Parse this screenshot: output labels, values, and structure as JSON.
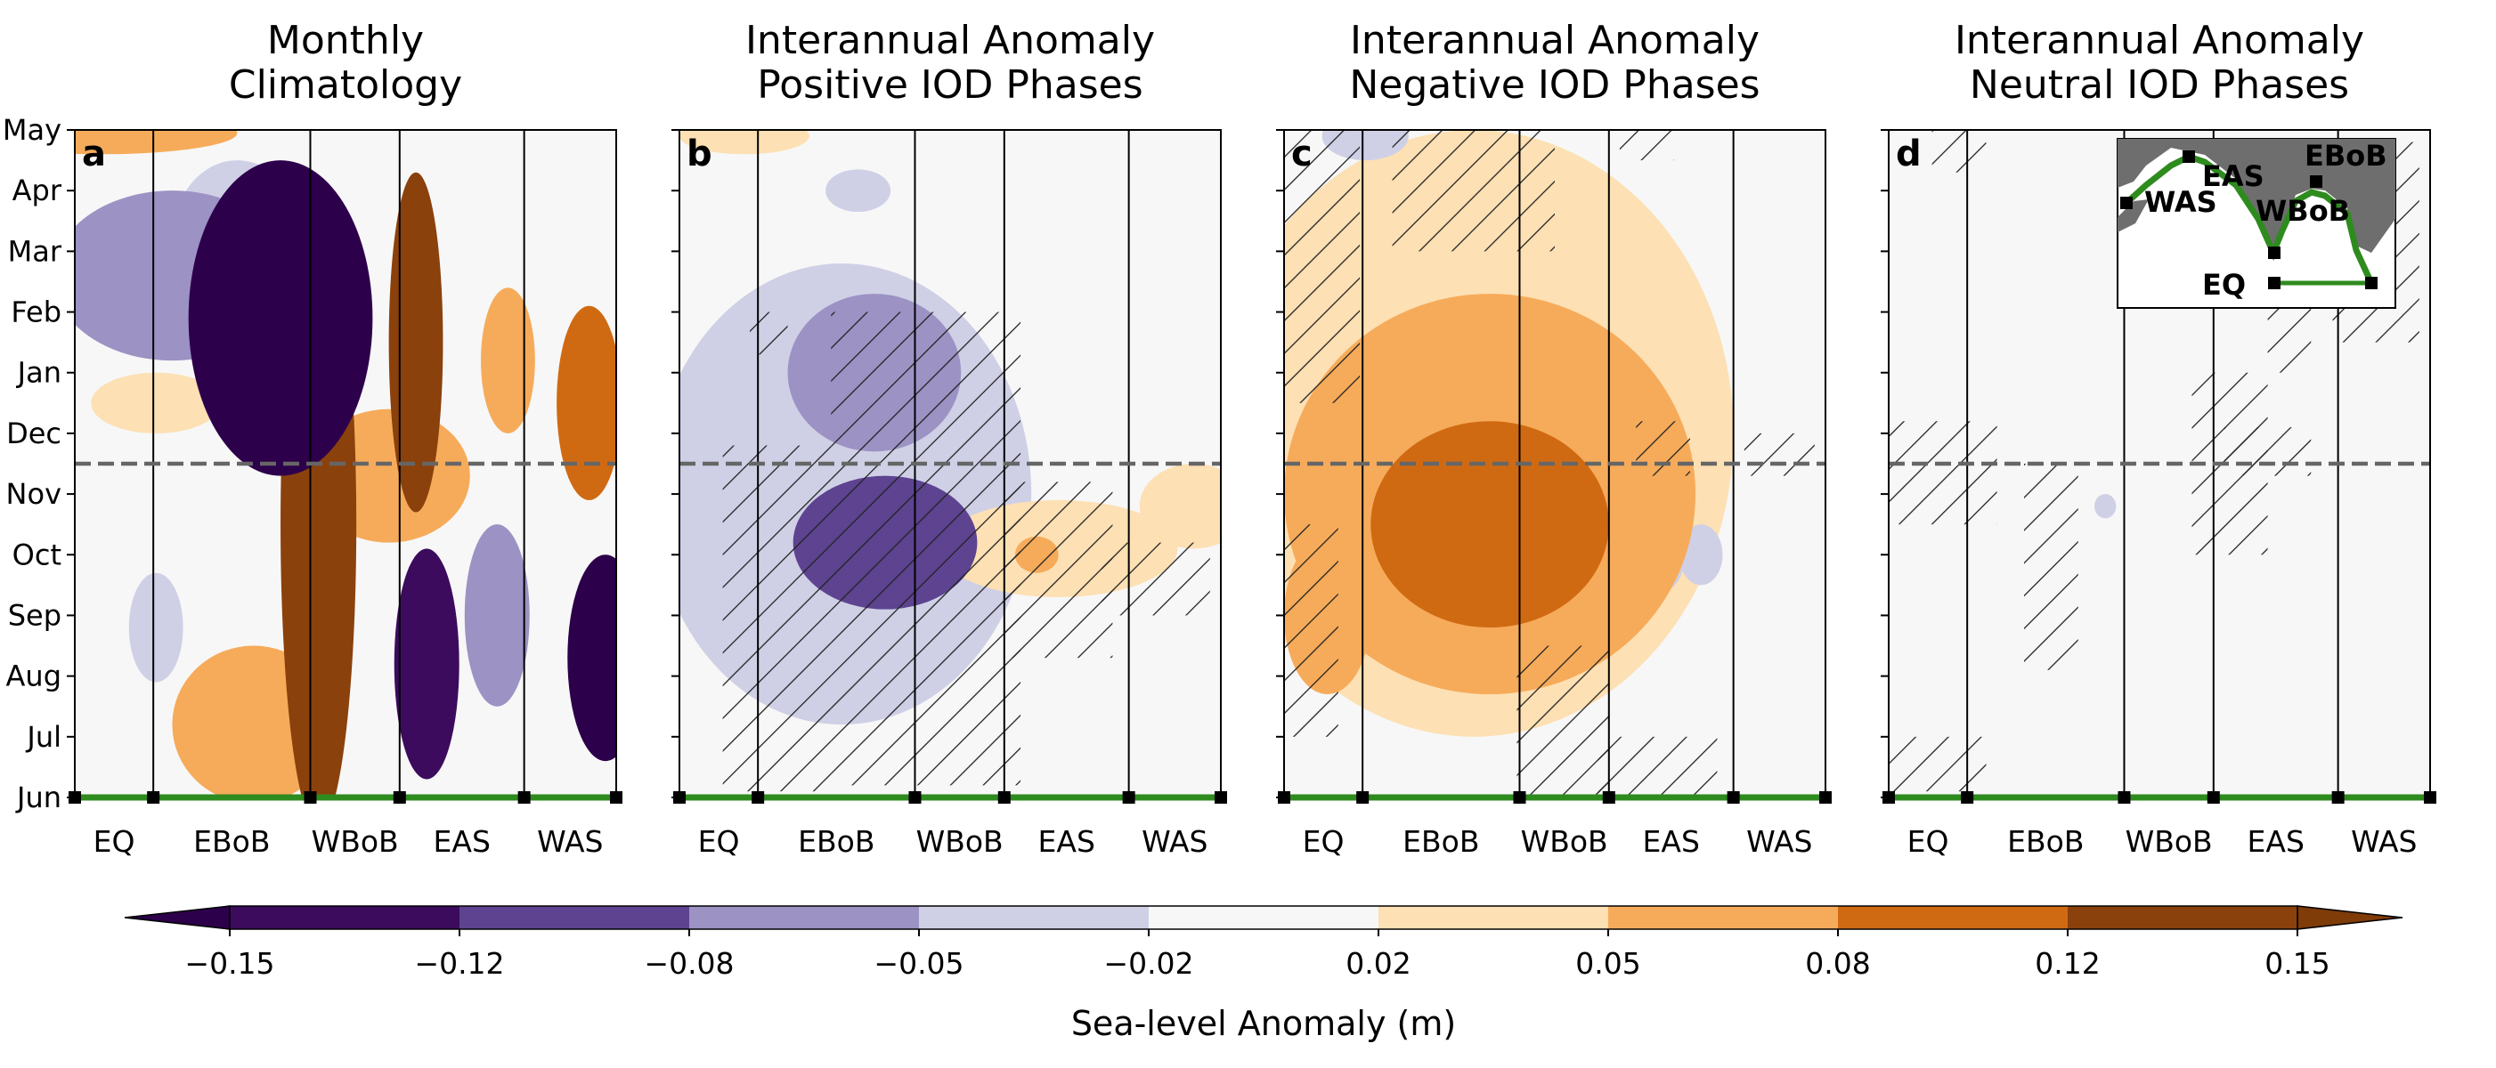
{
  "chart_data": {
    "type": "heatmap",
    "y_ticks": [
      "Jun",
      "Jul",
      "Aug",
      "Sep",
      "Oct",
      "Nov",
      "Dec",
      "Jan",
      "Feb",
      "Mar",
      "Apr",
      "May"
    ],
    "x_regions": [
      "EQ",
      "EBoB",
      "WBoB",
      "EAS",
      "WAS"
    ],
    "region_boundaries": [
      0,
      0.145,
      0.435,
      0.6,
      0.83,
      1.0
    ],
    "reference_line_month": 5.5,
    "panels": [
      {
        "label": "a",
        "title_lines": [
          "Monthly",
          "Climatology"
        ],
        "blobs": [
          {
            "cx": 0.38,
            "cy": 7.9,
            "rx": 0.17,
            "ry": 2.6,
            "v": -0.17
          },
          {
            "cx": 0.18,
            "cy": 8.6,
            "rx": 0.22,
            "ry": 1.4,
            "v": -0.08
          },
          {
            "cx": 0.3,
            "cy": 9.2,
            "rx": 0.12,
            "ry": 1.3,
            "v": -0.05
          },
          {
            "cx": 0.45,
            "cy": 4.5,
            "rx": 0.07,
            "ry": 5.0,
            "v": 0.12
          },
          {
            "cx": 0.63,
            "cy": 7.5,
            "rx": 0.05,
            "ry": 2.8,
            "v": 0.14
          },
          {
            "cx": 0.58,
            "cy": 5.3,
            "rx": 0.15,
            "ry": 1.1,
            "v": 0.07
          },
          {
            "cx": 0.33,
            "cy": 1.2,
            "rx": 0.15,
            "ry": 1.3,
            "v": 0.06
          },
          {
            "cx": 0.65,
            "cy": 2.2,
            "rx": 0.06,
            "ry": 1.9,
            "v": -0.15
          },
          {
            "cx": 0.98,
            "cy": 2.3,
            "rx": 0.07,
            "ry": 1.7,
            "v": -0.16
          },
          {
            "cx": 0.78,
            "cy": 3.0,
            "rx": 0.06,
            "ry": 1.5,
            "v": -0.07
          },
          {
            "cx": 0.95,
            "cy": 6.5,
            "rx": 0.06,
            "ry": 1.6,
            "v": 0.09
          },
          {
            "cx": 0.8,
            "cy": 7.2,
            "rx": 0.05,
            "ry": 1.2,
            "v": 0.06
          },
          {
            "cx": 0.15,
            "cy": 2.8,
            "rx": 0.05,
            "ry": 0.9,
            "v": -0.04
          },
          {
            "cx": 0.15,
            "cy": 6.5,
            "rx": 0.12,
            "ry": 0.5,
            "v": 0.03
          },
          {
            "cx": 0.05,
            "cy": 10.95,
            "rx": 0.25,
            "ry": 0.35,
            "v": 0.05
          }
        ],
        "hatch": []
      },
      {
        "label": "b",
        "title_lines": [
          "Interannual Anomaly",
          "Positive IOD Phases"
        ],
        "blobs": [
          {
            "cx": 0.38,
            "cy": 4.2,
            "rx": 0.17,
            "ry": 1.1,
            "v": -0.09
          },
          {
            "cx": 0.3,
            "cy": 5.0,
            "rx": 0.35,
            "ry": 3.8,
            "v": -0.03
          },
          {
            "cx": 0.36,
            "cy": 7.0,
            "rx": 0.16,
            "ry": 1.3,
            "v": -0.055
          },
          {
            "cx": 0.7,
            "cy": 4.1,
            "rx": 0.22,
            "ry": 0.8,
            "v": 0.04
          },
          {
            "cx": 0.66,
            "cy": 4.0,
            "rx": 0.04,
            "ry": 0.3,
            "v": 0.06
          },
          {
            "cx": 0.95,
            "cy": 4.8,
            "rx": 0.1,
            "ry": 0.7,
            "v": 0.03
          },
          {
            "cx": 0.12,
            "cy": 10.9,
            "rx": 0.12,
            "ry": 0.3,
            "v": 0.03
          },
          {
            "cx": 0.33,
            "cy": 10.0,
            "rx": 0.06,
            "ry": 0.35,
            "v": -0.03
          }
        ],
        "hatch": [
          [
            0.08,
            0.28,
            0.1,
            5.8
          ],
          [
            0.28,
            0.63,
            0.2,
            8.0
          ],
          [
            0.6,
            0.8,
            2.3,
            5.2
          ],
          [
            0.13,
            0.2,
            7.3,
            8.0
          ],
          [
            0.78,
            0.98,
            3.0,
            4.2
          ]
        ]
      },
      {
        "label": "c",
        "title_lines": [
          "Interannual Anomaly",
          "Negative IOD Phases"
        ],
        "blobs": [
          {
            "cx": 0.38,
            "cy": 4.5,
            "rx": 0.22,
            "ry": 1.7,
            "v": 0.09
          },
          {
            "cx": 0.38,
            "cy": 5.0,
            "rx": 0.38,
            "ry": 3.3,
            "v": 0.055
          },
          {
            "cx": 0.35,
            "cy": 6.0,
            "rx": 0.48,
            "ry": 5.0,
            "v": 0.03
          },
          {
            "cx": 0.08,
            "cy": 3.0,
            "rx": 0.08,
            "ry": 1.3,
            "v": 0.06
          },
          {
            "cx": 0.7,
            "cy": 4.0,
            "rx": 0.04,
            "ry": 0.6,
            "v": -0.03
          },
          {
            "cx": 0.77,
            "cy": 4.0,
            "rx": 0.04,
            "ry": 0.5,
            "v": -0.03
          },
          {
            "cx": 0.15,
            "cy": 10.9,
            "rx": 0.08,
            "ry": 0.4,
            "v": -0.03
          }
        ],
        "hatch": [
          [
            0.0,
            0.14,
            6.5,
            11.0
          ],
          [
            0.0,
            0.1,
            1.0,
            4.5
          ],
          [
            0.43,
            0.6,
            0.0,
            2.5
          ],
          [
            0.58,
            0.8,
            0.0,
            1.0
          ],
          [
            0.65,
            0.75,
            5.3,
            6.2
          ],
          [
            0.85,
            0.98,
            5.3,
            6.0
          ],
          [
            0.2,
            0.5,
            9.0,
            11.0
          ],
          [
            0.62,
            0.72,
            10.5,
            11.0
          ]
        ]
      },
      {
        "label": "d",
        "title_lines": [
          "Interannual Anomaly",
          "Neutral IOD Phases"
        ],
        "blobs": [
          {
            "cx": 0.4,
            "cy": 4.8,
            "rx": 0.02,
            "ry": 0.2,
            "v": -0.03
          }
        ],
        "hatch": [
          [
            0.0,
            0.2,
            4.5,
            6.2
          ],
          [
            0.0,
            0.18,
            0.1,
            1.0
          ],
          [
            0.25,
            0.35,
            2.1,
            5.5
          ],
          [
            0.56,
            0.7,
            4.0,
            7.0
          ],
          [
            0.7,
            0.78,
            7.0,
            8.2
          ],
          [
            0.82,
            0.98,
            7.5,
            10.8
          ],
          [
            0.62,
            0.78,
            5.3,
            6.1
          ],
          [
            0.08,
            0.18,
            10.3,
            11.0
          ]
        ]
      }
    ],
    "colorbar": {
      "label": "Sea-level Anomaly (m)",
      "tick_labels": [
        "−0.15",
        "−0.12",
        "−0.08",
        "−0.05",
        "−0.02",
        "0.02",
        "0.05",
        "0.08",
        "0.12",
        "0.15"
      ],
      "levels": [
        -0.15,
        -0.12,
        -0.08,
        -0.05,
        -0.02,
        0.02,
        0.05,
        0.08,
        0.12,
        0.15
      ],
      "colors": [
        "#3c0b5d",
        "#5d4390",
        "#9c92c4",
        "#cfd0e6",
        "#f7f7f7",
        "#fde0b3",
        "#f6ab5a",
        "#d06a12",
        "#8b410c",
        "#8b410c"
      ],
      "under_color": "#2d004b",
      "over_color": "#7f3b08",
      "extend": "both"
    },
    "inset": {
      "labels": [
        "EBoB",
        "EAS",
        "WAS",
        "WBoB",
        "EQ"
      ]
    }
  },
  "colors": {
    "coast": "#2e8b1e",
    "reference_line": "#666666",
    "land": "#6e6e6e"
  }
}
